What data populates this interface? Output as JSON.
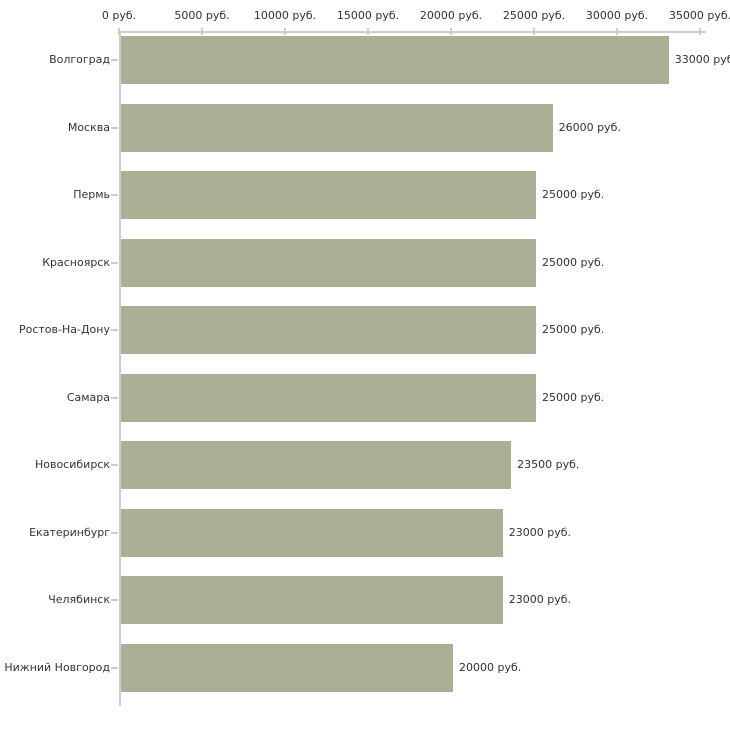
{
  "chart_data": {
    "type": "bar",
    "orientation": "horizontal",
    "title": "",
    "categories": [
      "Волгоград",
      "Москва",
      "Пермь",
      "Красноярск",
      "Ростов-На-Дону",
      "Самара",
      "Новосибирск",
      "Екатеринбург",
      "Челябинск",
      "Нижний Новгород"
    ],
    "values": [
      33000,
      26000,
      25000,
      25000,
      25000,
      25000,
      23500,
      23000,
      23000,
      20000
    ],
    "value_labels": [
      "33000 руб",
      "26000 руб.",
      "25000 руб.",
      "25000 руб.",
      "25000 руб.",
      "25000 руб.",
      "23500 руб.",
      "23000 руб.",
      "23000 руб.",
      "20000 руб."
    ],
    "x_ticks": [
      0,
      5000,
      10000,
      15000,
      20000,
      25000,
      30000,
      35000
    ],
    "x_tick_labels": [
      "0 руб.",
      "5000 руб.",
      "10000 руб.",
      "15000 руб.",
      "20000 руб.",
      "25000 руб.",
      "30000 руб.",
      "35000 руб."
    ],
    "xlim": [
      0,
      35000
    ],
    "unit": "руб.",
    "grid": false,
    "legend": "none",
    "colors": {
      "bar": "#aab096",
      "axis_line": "#cdcdcd",
      "tick_mark": "#cfcfb2",
      "text": "#333333",
      "background": "#ffffff"
    }
  }
}
